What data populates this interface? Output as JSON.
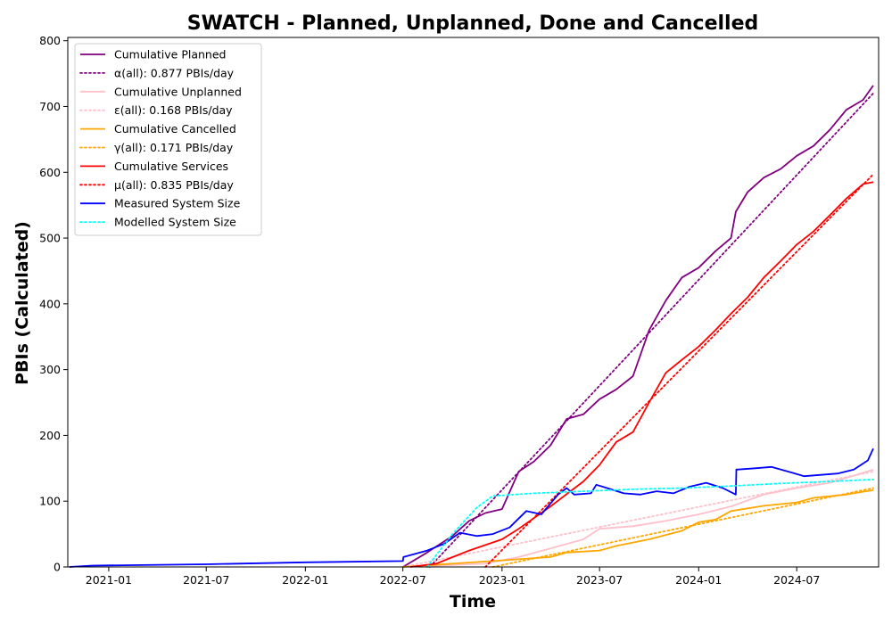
{
  "chart_data": {
    "type": "line",
    "title": "SWATCH - Planned, Unplanned, Done  and Cancelled",
    "xlabel": "Time",
    "ylabel": "PBIs (Calculated)",
    "x_range": [
      "2020-10-17",
      "2024-11-30"
    ],
    "ylim": [
      0,
      805
    ],
    "x_ticks": [
      "2021-01",
      "2021-07",
      "2022-01",
      "2022-07",
      "2023-01",
      "2023-07",
      "2024-01",
      "2024-07"
    ],
    "y_ticks": [
      0,
      100,
      200,
      300,
      400,
      500,
      600,
      700,
      800
    ],
    "grid": false,
    "legend_position": "upper-left",
    "series": [
      {
        "name": "Cumulative Planned",
        "color": "#800080",
        "style": "solid",
        "points": [
          [
            "2022-07-01",
            0
          ],
          [
            "2022-08-15",
            22
          ],
          [
            "2022-10-01",
            47
          ],
          [
            "2022-11-01",
            70
          ],
          [
            "2022-12-01",
            82
          ],
          [
            "2023-01-01",
            88
          ],
          [
            "2023-02-01",
            145
          ],
          [
            "2023-03-01",
            160
          ],
          [
            "2023-04-01",
            185
          ],
          [
            "2023-05-01",
            225
          ],
          [
            "2023-06-01",
            232
          ],
          [
            "2023-07-01",
            255
          ],
          [
            "2023-08-01",
            270
          ],
          [
            "2023-09-01",
            290
          ],
          [
            "2023-10-01",
            360
          ],
          [
            "2023-11-01",
            405
          ],
          [
            "2023-12-01",
            440
          ],
          [
            "2024-01-01",
            455
          ],
          [
            "2024-02-01",
            480
          ],
          [
            "2024-03-01",
            500
          ],
          [
            "2024-03-10",
            540
          ],
          [
            "2024-04-01",
            570
          ],
          [
            "2024-05-01",
            592
          ],
          [
            "2024-06-01",
            605
          ],
          [
            "2024-07-01",
            625
          ],
          [
            "2024-08-01",
            640
          ],
          [
            "2024-09-01",
            665
          ],
          [
            "2024-10-01",
            695
          ],
          [
            "2024-11-01",
            710
          ],
          [
            "2024-11-20",
            732
          ]
        ]
      },
      {
        "name": "α(all): 0.877 PBIs/day",
        "color": "#800080",
        "style": "dotted",
        "points": [
          [
            "2022-08-20",
            0
          ],
          [
            "2024-11-20",
            720
          ]
        ]
      },
      {
        "name": "Cumulative Unplanned",
        "color": "#ffc0cb",
        "style": "solid",
        "points": [
          [
            "2022-07-01",
            0
          ],
          [
            "2022-12-01",
            5
          ],
          [
            "2023-02-01",
            15
          ],
          [
            "2023-04-01",
            28
          ],
          [
            "2023-06-01",
            42
          ],
          [
            "2023-07-01",
            58
          ],
          [
            "2023-09-01",
            62
          ],
          [
            "2023-11-01",
            70
          ],
          [
            "2024-01-01",
            80
          ],
          [
            "2024-03-01",
            92
          ],
          [
            "2024-05-01",
            110
          ],
          [
            "2024-07-01",
            120
          ],
          [
            "2024-09-01",
            128
          ],
          [
            "2024-11-20",
            148
          ]
        ]
      },
      {
        "name": "ε(all): 0.168 PBIs/day",
        "color": "#ffc0cb",
        "style": "dotted",
        "points": [
          [
            "2022-07-01",
            0
          ],
          [
            "2024-11-20",
            145
          ]
        ]
      },
      {
        "name": "Cumulative Cancelled",
        "color": "#ffa500",
        "style": "solid",
        "points": [
          [
            "2022-07-01",
            0
          ],
          [
            "2022-10-01",
            5
          ],
          [
            "2023-01-01",
            10
          ],
          [
            "2023-04-01",
            15
          ],
          [
            "2023-05-01",
            22
          ],
          [
            "2023-07-01",
            25
          ],
          [
            "2023-08-01",
            32
          ],
          [
            "2023-10-01",
            42
          ],
          [
            "2023-12-01",
            55
          ],
          [
            "2024-01-01",
            68
          ],
          [
            "2024-02-01",
            72
          ],
          [
            "2024-03-01",
            85
          ],
          [
            "2024-05-01",
            93
          ],
          [
            "2024-07-01",
            98
          ],
          [
            "2024-08-01",
            105
          ],
          [
            "2024-10-01",
            110
          ],
          [
            "2024-11-20",
            117
          ]
        ]
      },
      {
        "name": "γ(all): 0.171 PBIs/day",
        "color": "#ffa500",
        "style": "dotted",
        "points": [
          [
            "2022-12-15",
            0
          ],
          [
            "2024-11-20",
            120
          ]
        ]
      },
      {
        "name": "Cumulative Services",
        "color": "#ff0000",
        "style": "solid",
        "points": [
          [
            "2022-07-15",
            0
          ],
          [
            "2022-09-01",
            5
          ],
          [
            "2022-11-01",
            25
          ],
          [
            "2023-01-01",
            42
          ],
          [
            "2023-02-01",
            58
          ],
          [
            "2023-04-01",
            92
          ],
          [
            "2023-06-01",
            130
          ],
          [
            "2023-07-01",
            155
          ],
          [
            "2023-08-01",
            190
          ],
          [
            "2023-09-01",
            205
          ],
          [
            "2023-10-01",
            250
          ],
          [
            "2023-11-01",
            295
          ],
          [
            "2023-12-01",
            315
          ],
          [
            "2024-01-01",
            335
          ],
          [
            "2024-02-01",
            360
          ],
          [
            "2024-03-01",
            385
          ],
          [
            "2024-04-01",
            410
          ],
          [
            "2024-05-01",
            440
          ],
          [
            "2024-06-01",
            465
          ],
          [
            "2024-07-01",
            490
          ],
          [
            "2024-08-01",
            510
          ],
          [
            "2024-09-01",
            535
          ],
          [
            "2024-10-01",
            560
          ],
          [
            "2024-11-01",
            582
          ],
          [
            "2024-11-20",
            585
          ]
        ]
      },
      {
        "name": "μ(all): 0.835 PBIs/day",
        "color": "#ff0000",
        "style": "dotted",
        "points": [
          [
            "2022-12-01",
            0
          ],
          [
            "2024-11-20",
            597
          ]
        ]
      },
      {
        "name": "Measured System Size",
        "color": "#0000ff",
        "style": "solid",
        "points": [
          [
            "2020-10-20",
            0
          ],
          [
            "2020-12-01",
            2
          ],
          [
            "2021-07-01",
            4
          ],
          [
            "2022-01-01",
            7
          ],
          [
            "2022-07-01",
            9
          ],
          [
            "2022-07-02",
            15
          ],
          [
            "2022-08-15",
            25
          ],
          [
            "2022-09-15",
            35
          ],
          [
            "2022-10-15",
            52
          ],
          [
            "2022-11-15",
            47
          ],
          [
            "2022-12-15",
            50
          ],
          [
            "2023-01-15",
            60
          ],
          [
            "2023-02-15",
            85
          ],
          [
            "2023-03-15",
            80
          ],
          [
            "2023-04-15",
            110
          ],
          [
            "2023-05-01",
            120
          ],
          [
            "2023-05-15",
            110
          ],
          [
            "2023-06-15",
            112
          ],
          [
            "2023-06-25",
            125
          ],
          [
            "2023-07-15",
            120
          ],
          [
            "2023-08-15",
            112
          ],
          [
            "2023-09-15",
            110
          ],
          [
            "2023-10-15",
            115
          ],
          [
            "2023-11-15",
            112
          ],
          [
            "2023-12-15",
            122
          ],
          [
            "2024-01-15",
            128
          ],
          [
            "2024-02-15",
            120
          ],
          [
            "2024-03-10",
            110
          ],
          [
            "2024-03-11",
            148
          ],
          [
            "2024-04-15",
            150
          ],
          [
            "2024-05-15",
            152
          ],
          [
            "2024-06-15",
            145
          ],
          [
            "2024-07-15",
            138
          ],
          [
            "2024-08-15",
            140
          ],
          [
            "2024-09-15",
            142
          ],
          [
            "2024-10-15",
            148
          ],
          [
            "2024-11-10",
            162
          ],
          [
            "2024-11-20",
            180
          ]
        ]
      },
      {
        "name": "Modelled System Size",
        "color": "#00ffff",
        "style": "dotted",
        "points": [
          [
            "2022-08-15",
            0
          ],
          [
            "2022-10-01",
            50
          ],
          [
            "2022-11-15",
            90
          ],
          [
            "2022-12-15",
            108
          ],
          [
            "2023-03-01",
            112
          ],
          [
            "2023-06-01",
            115
          ],
          [
            "2023-09-01",
            118
          ],
          [
            "2023-12-01",
            120
          ],
          [
            "2024-03-01",
            123
          ],
          [
            "2024-06-01",
            127
          ],
          [
            "2024-09-01",
            130
          ],
          [
            "2024-11-20",
            133
          ]
        ]
      }
    ]
  }
}
